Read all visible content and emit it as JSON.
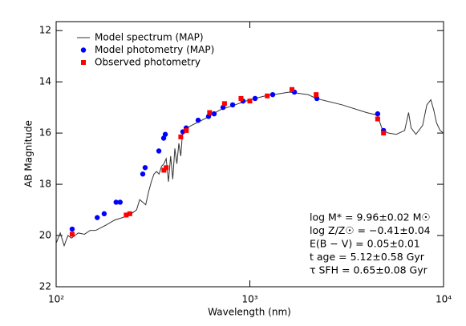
{
  "chart_data": {
    "type": "scatter",
    "xlabel": "Wavelength (nm)",
    "ylabel": "AB Magnitude",
    "xscale": "log",
    "xlim": [
      100,
      10000
    ],
    "ylim": [
      22,
      11.65
    ],
    "xticks": [
      {
        "value": 100,
        "label": "10²"
      },
      {
        "value": 1000,
        "label": "10³"
      },
      {
        "value": 10000,
        "label": "10⁴"
      }
    ],
    "yticks": [
      12,
      14,
      16,
      18,
      20,
      22
    ],
    "legend": "top-left",
    "series": [
      {
        "name": "Model spectrum (MAP)",
        "type": "line",
        "color": "#333333",
        "x": [
          100,
          105,
          110,
          115,
          120,
          130,
          140,
          150,
          160,
          180,
          200,
          220,
          240,
          260,
          270,
          280,
          290,
          300,
          310,
          320,
          330,
          340,
          350,
          360,
          370,
          380,
          390,
          400,
          410,
          420,
          430,
          440,
          450,
          500,
          600,
          700,
          800,
          1000,
          1200,
          1600,
          2000,
          2200,
          3000,
          4000,
          4550,
          4850,
          5200,
          5700,
          6300,
          6600,
          6800,
          7200,
          7800,
          8200,
          8600,
          8900,
          9200,
          9600,
          10000
        ],
        "values": [
          20.3,
          19.9,
          20.4,
          20.0,
          20.1,
          19.9,
          19.95,
          19.8,
          19.8,
          19.6,
          19.4,
          19.3,
          19.2,
          19.0,
          18.6,
          18.7,
          18.8,
          18.3,
          17.9,
          17.6,
          17.5,
          17.6,
          17.3,
          17.2,
          17.0,
          17.9,
          16.9,
          17.8,
          16.6,
          17.2,
          16.4,
          16.9,
          15.9,
          15.7,
          15.4,
          15.1,
          14.95,
          14.7,
          14.55,
          14.4,
          14.5,
          14.65,
          14.9,
          15.2,
          15.3,
          15.9,
          16.0,
          16.05,
          15.9,
          15.2,
          15.8,
          16.05,
          15.7,
          14.9,
          14.7,
          15.1,
          15.6,
          15.9,
          16.0
        ]
      },
      {
        "name": "Model photometry (MAP)",
        "type": "scatter",
        "marker": "circle",
        "color": "#0000ff",
        "x": [
          121,
          163,
          177,
          204,
          214,
          280,
          288,
          339,
          359,
          366,
          451,
          469,
          541,
          612,
          654,
          727,
          815,
          922,
          1064,
          1312,
          1698,
          2218,
          4570,
          4900
        ],
        "values": [
          19.75,
          19.3,
          19.15,
          18.7,
          18.7,
          17.6,
          17.35,
          16.7,
          16.2,
          16.05,
          15.95,
          15.8,
          15.5,
          15.35,
          15.25,
          15.0,
          14.9,
          14.75,
          14.65,
          14.5,
          14.4,
          14.65,
          15.25,
          15.9
        ]
      },
      {
        "name": "Observed photometry",
        "type": "scatter",
        "marker": "square",
        "color": "#ff0000",
        "x": [
          121,
          230,
          240,
          360,
          370,
          440,
          470,
          620,
          740,
          900,
          1000,
          1230,
          1650,
          2200,
          4570,
          4900
        ],
        "values": [
          19.95,
          19.2,
          19.15,
          17.45,
          17.35,
          16.15,
          15.9,
          15.2,
          14.85,
          14.65,
          14.75,
          14.55,
          14.3,
          14.5,
          15.45,
          16.0
        ]
      }
    ],
    "annotations": [
      "log M* = 9.96±0.02 M☉",
      "log Z/Z☉ = −0.41±0.04",
      "E(B − V) = 0.05±0.01",
      "t age = 5.12±0.58 Gyr",
      "τ SFH = 0.65±0.08 Gyr"
    ]
  }
}
